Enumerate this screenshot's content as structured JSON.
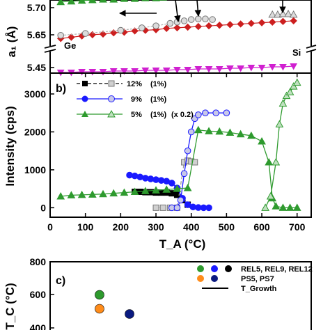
{
  "chart_data": [
    {
      "panel": "a",
      "type": "line",
      "ylabel": "a₁ (Å)",
      "yticks": [
        "5.70",
        "5.65",
        "5.45"
      ],
      "ylim_upper": [
        5.64,
        5.715
      ],
      "ylim_lower": [
        5.43,
        5.46
      ],
      "annotations": [
        "Ge",
        "Si"
      ],
      "series": [
        {
          "color": "#2e9a2e",
          "marker": "triangle-up",
          "x": [
            30,
            60,
            90,
            120,
            150,
            180,
            210,
            240,
            270,
            300,
            320
          ],
          "y": [
            5.712,
            5.713,
            5.714,
            5.715,
            5.716,
            5.716,
            5.717,
            5.717,
            5.718,
            5.718,
            5.719
          ]
        },
        {
          "color": "#cc1f1f",
          "marker": "diamond",
          "x": [
            30,
            60,
            90,
            120,
            150,
            180,
            210,
            240,
            270,
            300,
            330,
            360,
            390,
            420,
            450,
            480,
            510,
            540,
            570,
            600,
            630,
            660,
            690
          ],
          "y": [
            5.654,
            5.656,
            5.658,
            5.66,
            5.661,
            5.663,
            5.664,
            5.666,
            5.667,
            5.668,
            5.67,
            5.671,
            5.672,
            5.673,
            5.674,
            5.675,
            5.676,
            5.677,
            5.678,
            5.679,
            5.68,
            5.681,
            5.682
          ]
        },
        {
          "color": "#b4b4b4",
          "marker": "circle",
          "x": [
            30,
            100,
            200,
            260,
            300,
            340,
            360,
            380,
            400,
            420,
            440,
            460
          ],
          "y": [
            5.659,
            5.662,
            5.667,
            5.671,
            5.674,
            5.678,
            5.68,
            5.682,
            5.684,
            5.685,
            5.685,
            5.684
          ]
        },
        {
          "color": "#b4b4b4",
          "marker": "triangle-up",
          "x": [
            630,
            645,
            660,
            675,
            690
          ],
          "y": [
            5.692,
            5.692,
            5.693,
            5.693,
            5.692
          ]
        },
        {
          "color": "#d020d0",
          "marker": "triangle-down",
          "x": [
            30,
            60,
            90,
            120,
            150,
            180,
            210,
            240,
            270,
            300,
            330,
            360,
            390,
            420,
            450,
            480,
            510,
            540,
            570,
            600,
            630,
            660,
            690
          ],
          "y": [
            5.431,
            5.431,
            5.432,
            5.432,
            5.432,
            5.433,
            5.433,
            5.433,
            5.434,
            5.434,
            5.434,
            5.435,
            5.435,
            5.436,
            5.436,
            5.436,
            5.437,
            5.437,
            5.438,
            5.438,
            5.439,
            5.439,
            5.44
          ]
        }
      ]
    },
    {
      "panel": "b",
      "type": "line",
      "xlabel": "T_A (°C)",
      "ylabel": "Intensity (cps)",
      "xlim": [
        0,
        740
      ],
      "ylim": [
        -250,
        3550
      ],
      "xticks": [
        "0",
        "100",
        "200",
        "300",
        "400",
        "500",
        "600",
        "700"
      ],
      "yticks": [
        "0",
        "1000",
        "2000",
        "3000"
      ],
      "legend": [
        {
          "label": "12%",
          "note": "(1%)",
          "extra": ""
        },
        {
          "label": "9%",
          "note": "(1%)",
          "extra": ""
        },
        {
          "label": "5%",
          "note": "(1%)",
          "extra": "(x 0.2)"
        }
      ],
      "series": [
        {
          "name": "12%",
          "color": "#000000",
          "filled": true,
          "marker": "square",
          "x": [
            240,
            255,
            270,
            285,
            300,
            315,
            330,
            345,
            360,
            375,
            390
          ],
          "y": [
            420,
            420,
            410,
            410,
            400,
            400,
            400,
            380,
            340,
            200,
            80
          ]
        },
        {
          "name": "12% (1%)",
          "color": "#9a9a9a",
          "filled": false,
          "marker": "square",
          "x": [
            300,
            320,
            340,
            360,
            380,
            390,
            400,
            410
          ],
          "y": [
            0,
            0,
            0,
            0,
            1200,
            1240,
            1220,
            1200
          ]
        },
        {
          "name": "9%",
          "color": "#1a1aff",
          "filled": true,
          "marker": "circle",
          "x": [
            225,
            240,
            255,
            270,
            285,
            300,
            315,
            330,
            345,
            360,
            375,
            390,
            405,
            420,
            435,
            450
          ],
          "y": [
            860,
            840,
            810,
            780,
            760,
            740,
            720,
            700,
            650,
            520,
            250,
            80,
            20,
            5,
            0,
            0
          ]
        },
        {
          "name": "9% (1%)",
          "color": "#1a1aff",
          "filled": false,
          "marker": "circle",
          "x": [
            345,
            360,
            370,
            380,
            390,
            400,
            410,
            420,
            440,
            470,
            500
          ],
          "y": [
            0,
            0,
            200,
            900,
            1500,
            2000,
            2350,
            2450,
            2500,
            2500,
            2500
          ]
        },
        {
          "name": "5%",
          "color": "#2e9a2e",
          "filled": true,
          "marker": "triangle-up",
          "x": [
            30,
            60,
            90,
            120,
            150,
            180,
            210,
            240,
            270,
            300,
            330,
            360,
            390,
            420,
            450,
            480,
            510,
            540,
            570,
            600,
            620,
            630,
            640,
            660,
            680,
            700
          ],
          "y": [
            300,
            330,
            340,
            350,
            360,
            380,
            400,
            420,
            440,
            460,
            480,
            500,
            520,
            2050,
            2020,
            2010,
            1980,
            1940,
            1900,
            1750,
            1200,
            250,
            40,
            0,
            0,
            0
          ]
        },
        {
          "name": "5% (1%)",
          "color": "#2e9a2e",
          "filled": false,
          "marker": "triangle-up",
          "x": [
            610,
            625,
            640,
            650,
            660,
            670,
            680,
            690,
            700
          ],
          "y": [
            0,
            300,
            1200,
            2200,
            2750,
            2950,
            3050,
            3200,
            3300
          ]
        }
      ]
    },
    {
      "panel": "c",
      "type": "scatter",
      "ylabel": "T_C (°C)",
      "yticks": [
        "800",
        "600",
        "400"
      ],
      "ylim": [
        380,
        820
      ],
      "legend": [
        "REL5, REL9, REL12",
        "PS5, PS7",
        "T_Growth"
      ],
      "points": [
        {
          "x": 140,
          "y": 630,
          "color": "#2e9a2e"
        },
        {
          "x": 140,
          "y": 550,
          "color": "#ff8c1a"
        },
        {
          "x": 225,
          "y": 520,
          "color": "#0a1a80"
        }
      ]
    }
  ]
}
